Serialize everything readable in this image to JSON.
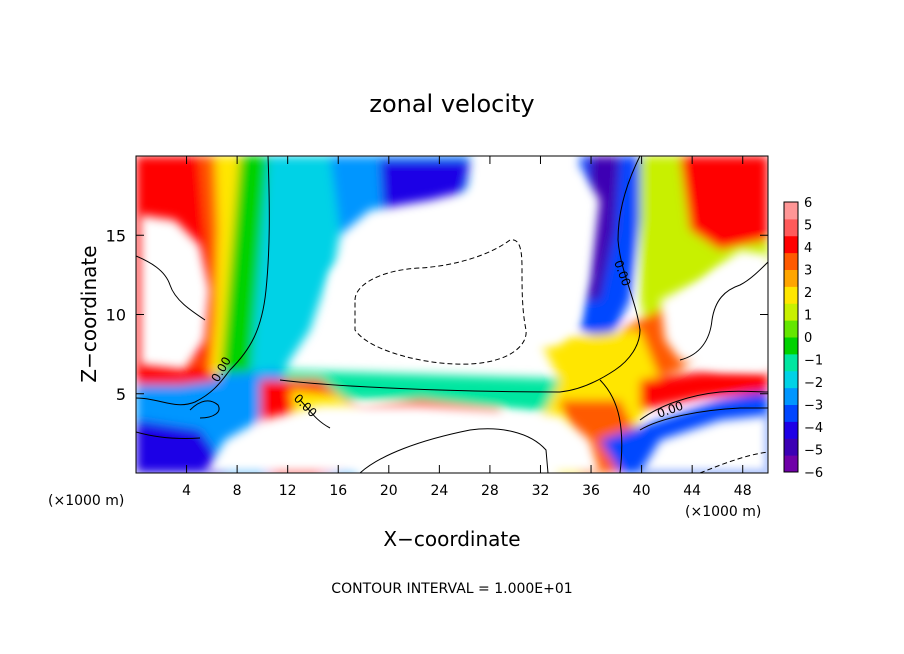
{
  "chart_data": {
    "type": "heatmap",
    "title": "zonal velocity",
    "xlabel": "X−coordinate",
    "ylabel": "Z−coordinate",
    "x_unit_label": "(×1000 m)",
    "z_unit_label": "(×1000 m)",
    "footer": "CONTOUR INTERVAL = 1.000E+01",
    "xlim": [
      0,
      50
    ],
    "ylim": [
      0,
      20
    ],
    "x_ticks": [
      4,
      8,
      12,
      16,
      20,
      24,
      28,
      32,
      36,
      40,
      44,
      48
    ],
    "y_ticks": [
      5,
      10,
      15
    ],
    "contour_labels": [
      "0.00",
      "0.00",
      "0.00",
      "0.00"
    ],
    "colorbar": {
      "min": -6,
      "max": 6,
      "tick_labels": [
        "6",
        "5",
        "4",
        "3",
        "2",
        "1",
        "0",
        "−1",
        "−2",
        "−3",
        "−4",
        "−5",
        "−6"
      ],
      "tick_values": [
        6,
        5,
        4,
        3,
        2,
        1,
        0,
        -1,
        -2,
        -3,
        -4,
        -5,
        -6
      ],
      "colors": [
        "#6f00a8",
        "#3c00b4",
        "#1e00e6",
        "#0046ff",
        "#0096ff",
        "#00d2e6",
        "#00e6a0",
        "#00d200",
        "#64e600",
        "#c8f000",
        "#ffe600",
        "#ffa500",
        "#ff5a00",
        "#ff0000",
        "#ff5a5a",
        "#ff9696"
      ]
    },
    "grid": false
  }
}
